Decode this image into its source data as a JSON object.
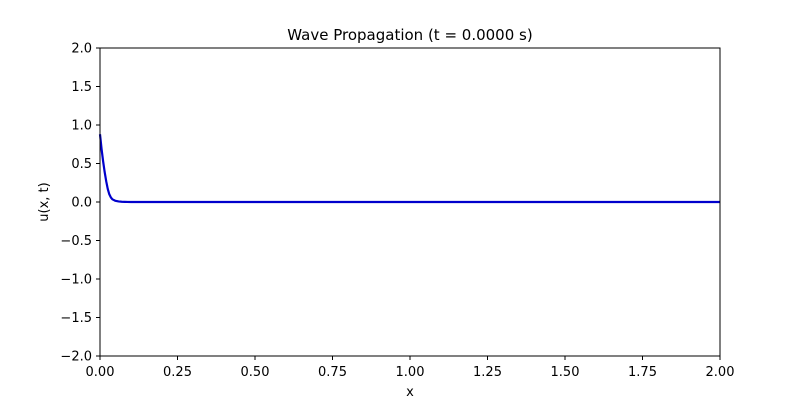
{
  "chart_data": {
    "type": "line",
    "title": "Wave Propagation (t = 0.0000 s)",
    "xlabel": "x",
    "ylabel": "u(x, t)",
    "xlim": [
      0,
      2
    ],
    "ylim": [
      -2,
      2
    ],
    "x_ticks": [
      "0.00",
      "0.25",
      "0.50",
      "0.75",
      "1.00",
      "1.25",
      "1.50",
      "1.75",
      "2.00"
    ],
    "y_ticks": [
      "−2.0",
      "−1.5",
      "−1.0",
      "−0.5",
      "0.0",
      "0.5",
      "1.0",
      "1.5",
      "2.0"
    ],
    "grid": false,
    "series": [
      {
        "color": "#0000cc",
        "x": [
          0,
          0.005,
          0.01,
          0.015,
          0.02,
          0.025,
          0.03,
          0.035,
          0.04,
          0.05,
          0.06,
          0.07,
          0.08,
          0.1,
          0.15,
          0.25,
          0.5,
          1.0,
          1.5,
          2.0
        ],
        "y": [
          0.88,
          0.69,
          0.53,
          0.39,
          0.27,
          0.17,
          0.1,
          0.06,
          0.035,
          0.015,
          0.007,
          0.003,
          0.0015,
          0.0,
          0.0,
          0.0,
          0.0,
          0.0,
          0.0,
          0.0
        ]
      }
    ]
  }
}
